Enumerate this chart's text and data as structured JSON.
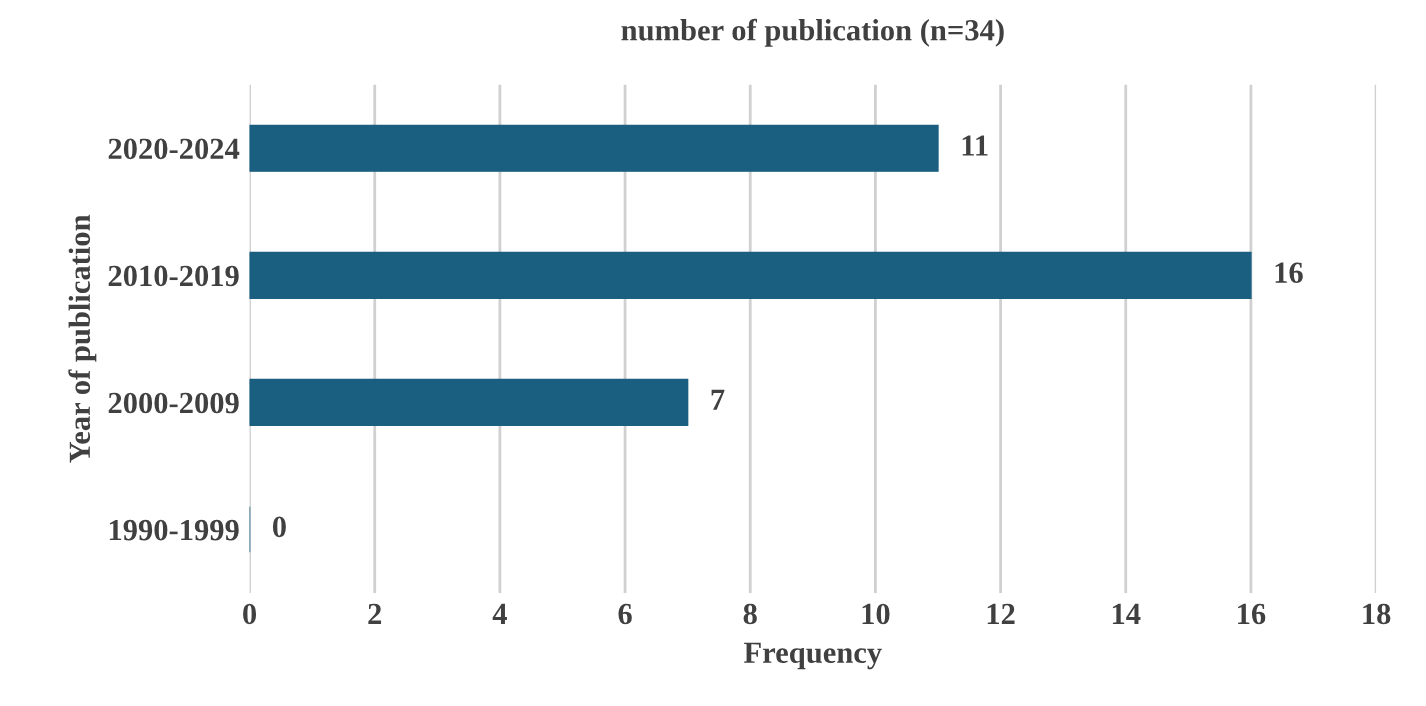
{
  "chart_data": {
    "type": "bar",
    "orientation": "horizontal",
    "title": "number of publication (n=34)",
    "xlabel": "Frequency",
    "ylabel": "Year of publication",
    "categories": [
      "2020-2024",
      "2010-2019",
      "2000-2009",
      "1990-1999"
    ],
    "values": [
      11,
      16,
      7,
      0
    ],
    "color": "#1a5e80",
    "xlim": [
      0,
      18
    ],
    "xticks": [
      0,
      2,
      4,
      6,
      8,
      10,
      12,
      14,
      16,
      18
    ],
    "grid": "x",
    "data_labels": true
  }
}
